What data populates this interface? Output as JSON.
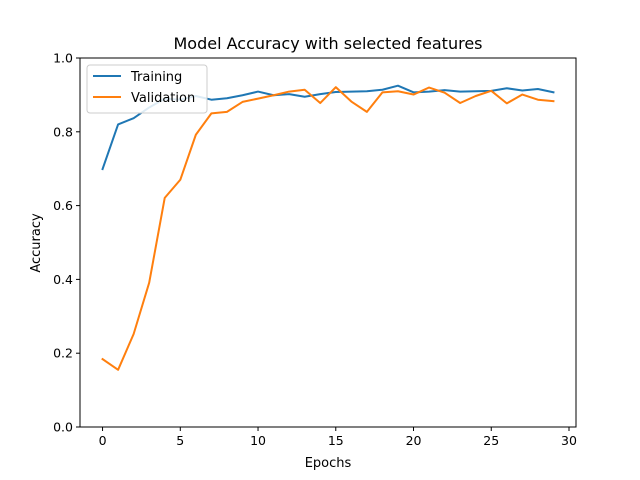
{
  "chart_data": {
    "type": "line",
    "title": "Model Accuracy with selected features",
    "xlabel": "Epochs",
    "ylabel": "Accuracy",
    "xlim": [
      -1.45,
      30.45
    ],
    "ylim": [
      0.0,
      1.0
    ],
    "xticks": [
      0,
      5,
      10,
      15,
      20,
      25,
      30
    ],
    "yticks": [
      0.0,
      0.2,
      0.4,
      0.6,
      0.8,
      1.0
    ],
    "xtick_labels": [
      "0",
      "5",
      "10",
      "15",
      "20",
      "25",
      "30"
    ],
    "ytick_labels": [
      "0.0",
      "0.2",
      "0.4",
      "0.6",
      "0.8",
      "1.0"
    ],
    "grid": false,
    "legend_position": "upper-left",
    "x": [
      0,
      1,
      2,
      3,
      4,
      5,
      6,
      7,
      8,
      9,
      10,
      11,
      12,
      13,
      14,
      15,
      16,
      17,
      18,
      19,
      20,
      21,
      22,
      23,
      24,
      25,
      26,
      27,
      28,
      29
    ],
    "series": [
      {
        "name": "Training",
        "color": "#1f77b4",
        "values": [
          0.699,
          0.82,
          0.837,
          0.866,
          0.89,
          0.887,
          0.897,
          0.887,
          0.891,
          0.899,
          0.909,
          0.899,
          0.902,
          0.895,
          0.902,
          0.908,
          0.909,
          0.91,
          0.914,
          0.925,
          0.907,
          0.909,
          0.913,
          0.909,
          0.91,
          0.911,
          0.918,
          0.912,
          0.916,
          0.907
        ]
      },
      {
        "name": "Validation",
        "color": "#ff7f0e",
        "values": [
          0.184,
          0.155,
          0.252,
          0.391,
          0.621,
          0.67,
          0.792,
          0.85,
          0.854,
          0.881,
          0.89,
          0.899,
          0.909,
          0.914,
          0.878,
          0.921,
          0.882,
          0.854,
          0.907,
          0.91,
          0.901,
          0.92,
          0.906,
          0.878,
          0.897,
          0.911,
          0.877,
          0.901,
          0.887,
          0.883
        ]
      }
    ]
  }
}
